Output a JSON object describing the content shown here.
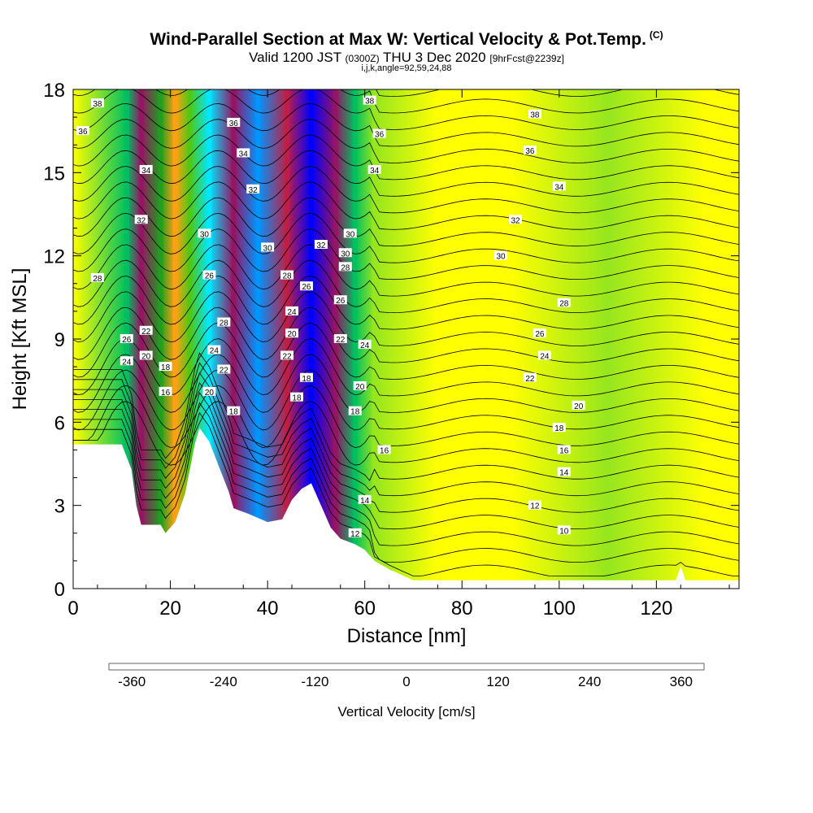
{
  "header": {
    "title": "Wind-Parallel Section at Max W: Vertical Velocity & Pot.Temp.",
    "title_mark": "(C)",
    "subtitle_valid": "Valid 1200 JST",
    "subtitle_z": "(0300Z)",
    "subtitle_date": "THU 3 Dec 2020",
    "subtitle_fcst": "[9hrFcst@2239z]",
    "subtitle_tiny": "i,j,k,angle=92,59,24,88"
  },
  "chart_data": {
    "type": "heatmap",
    "xlabel": "Distance [nm]",
    "ylabel": "Height [Kft MSL]",
    "xlim": [
      0,
      137
    ],
    "ylim": [
      0,
      18
    ],
    "x_ticks": [
      0,
      20,
      40,
      60,
      80,
      100,
      120
    ],
    "y_ticks": [
      0,
      3,
      6,
      9,
      12,
      15,
      18
    ],
    "colorbar": {
      "label": "Vertical Velocity [cm/s]",
      "range": [
        -390,
        390
      ],
      "tick_values": [
        -360,
        -240,
        -120,
        0,
        120,
        240,
        360
      ],
      "colors": [
        "#0000ff",
        "#0050f0",
        "#0096ff",
        "#00e6ff",
        "#00d8a0",
        "#00c060",
        "#1ea01e",
        "#50c814",
        "#96e61e",
        "#ffff00",
        "#ffe600",
        "#ffc800",
        "#ffa014",
        "#ff7814",
        "#ff3c0a",
        "#e60000",
        "#be1e46",
        "#961464",
        "#640a8c"
      ]
    },
    "vertical_velocity_bands": [
      {
        "x": 11,
        "w": -160
      },
      {
        "x": 14,
        "w": 330
      },
      {
        "x": 18,
        "w": -140
      },
      {
        "x": 21,
        "w": 140
      },
      {
        "x": 24,
        "w": -70
      },
      {
        "x": 28,
        "w": -230
      },
      {
        "x": 33,
        "w": 320
      },
      {
        "x": 38,
        "w": -270
      },
      {
        "x": 44,
        "w": 300
      },
      {
        "x": 49,
        "w": -380
      },
      {
        "x": 54,
        "w": 340
      },
      {
        "x": 58,
        "w": -180
      },
      {
        "x": 62,
        "w": -40
      },
      {
        "x": 75,
        "w": 20
      },
      {
        "x": 90,
        "w": 15
      },
      {
        "x": 110,
        "w": -25
      },
      {
        "x": 130,
        "w": 10
      }
    ],
    "terrain_kft": [
      {
        "x": 0,
        "h": 5.2
      },
      {
        "x": 10,
        "h": 5.2
      },
      {
        "x": 12,
        "h": 4.3
      },
      {
        "x": 13,
        "h": 3.0
      },
      {
        "x": 14,
        "h": 2.3
      },
      {
        "x": 18,
        "h": 2.3
      },
      {
        "x": 19,
        "h": 2.0
      },
      {
        "x": 21,
        "h": 2.4
      },
      {
        "x": 23,
        "h": 3.4
      },
      {
        "x": 25,
        "h": 5.2
      },
      {
        "x": 26,
        "h": 5.8
      },
      {
        "x": 28,
        "h": 5.3
      },
      {
        "x": 30,
        "h": 4.4
      },
      {
        "x": 32,
        "h": 3.5
      },
      {
        "x": 33,
        "h": 2.9
      },
      {
        "x": 36,
        "h": 2.7
      },
      {
        "x": 40,
        "h": 2.4
      },
      {
        "x": 43,
        "h": 2.5
      },
      {
        "x": 45,
        "h": 3.2
      },
      {
        "x": 47,
        "h": 3.6
      },
      {
        "x": 49,
        "h": 3.8
      },
      {
        "x": 51,
        "h": 3.0
      },
      {
        "x": 53,
        "h": 2.2
      },
      {
        "x": 55,
        "h": 1.8
      },
      {
        "x": 58,
        "h": 1.6
      },
      {
        "x": 60,
        "h": 1.4
      },
      {
        "x": 62,
        "h": 1.0
      },
      {
        "x": 65,
        "h": 0.7
      },
      {
        "x": 70,
        "h": 0.3
      },
      {
        "x": 124,
        "h": 0.3
      },
      {
        "x": 125,
        "h": 0.8
      },
      {
        "x": 126,
        "h": 0.3
      },
      {
        "x": 137,
        "h": 0.3
      }
    ],
    "theta_contour_labels": [
      {
        "x": 5,
        "y": 17.5,
        "t": "38"
      },
      {
        "x": 2,
        "y": 16.5,
        "t": "36"
      },
      {
        "x": 15,
        "y": 15.1,
        "t": "34"
      },
      {
        "x": 14,
        "y": 13.3,
        "t": "32"
      },
      {
        "x": 5,
        "y": 11.2,
        "t": "28"
      },
      {
        "x": 11,
        "y": 9.0,
        "t": "26"
      },
      {
        "x": 11,
        "y": 8.2,
        "t": "24"
      },
      {
        "x": 15,
        "y": 9.3,
        "t": "22"
      },
      {
        "x": 15,
        "y": 8.4,
        "t": "20"
      },
      {
        "x": 19,
        "y": 8.0,
        "t": "18"
      },
      {
        "x": 19,
        "y": 7.1,
        "t": "16"
      },
      {
        "x": 33,
        "y": 16.8,
        "t": "36"
      },
      {
        "x": 35,
        "y": 15.7,
        "t": "34"
      },
      {
        "x": 37,
        "y": 14.4,
        "t": "32"
      },
      {
        "x": 27,
        "y": 12.8,
        "t": "30"
      },
      {
        "x": 28,
        "y": 11.3,
        "t": "26"
      },
      {
        "x": 31,
        "y": 9.6,
        "t": "28"
      },
      {
        "x": 29,
        "y": 8.6,
        "t": "24"
      },
      {
        "x": 31,
        "y": 7.9,
        "t": "22"
      },
      {
        "x": 28,
        "y": 7.1,
        "t": "20"
      },
      {
        "x": 33,
        "y": 6.4,
        "t": "18"
      },
      {
        "x": 40,
        "y": 12.3,
        "t": "30"
      },
      {
        "x": 44,
        "y": 11.3,
        "t": "28"
      },
      {
        "x": 45,
        "y": 10.0,
        "t": "24"
      },
      {
        "x": 45,
        "y": 9.2,
        "t": "20"
      },
      {
        "x": 44,
        "y": 8.4,
        "t": "22"
      },
      {
        "x": 48,
        "y": 10.9,
        "t": "26"
      },
      {
        "x": 48,
        "y": 7.6,
        "t": "18"
      },
      {
        "x": 46,
        "y": 6.9,
        "t": "18"
      },
      {
        "x": 51,
        "y": 12.4,
        "t": "32"
      },
      {
        "x": 56,
        "y": 12.1,
        "t": "30"
      },
      {
        "x": 56,
        "y": 11.6,
        "t": "28"
      },
      {
        "x": 55,
        "y": 10.4,
        "t": "26"
      },
      {
        "x": 55,
        "y": 9.0,
        "t": "22"
      },
      {
        "x": 60,
        "y": 8.8,
        "t": "24"
      },
      {
        "x": 59,
        "y": 7.3,
        "t": "20"
      },
      {
        "x": 58,
        "y": 6.4,
        "t": "18"
      },
      {
        "x": 61,
        "y": 17.6,
        "t": "38"
      },
      {
        "x": 63,
        "y": 16.4,
        "t": "36"
      },
      {
        "x": 62,
        "y": 15.1,
        "t": "34"
      },
      {
        "x": 57,
        "y": 12.8,
        "t": "30"
      },
      {
        "x": 64,
        "y": 5.0,
        "t": "16"
      },
      {
        "x": 60,
        "y": 3.2,
        "t": "14"
      },
      {
        "x": 58,
        "y": 2.0,
        "t": "12"
      },
      {
        "x": 95,
        "y": 17.1,
        "t": "38"
      },
      {
        "x": 94,
        "y": 15.8,
        "t": "36"
      },
      {
        "x": 100,
        "y": 14.5,
        "t": "34"
      },
      {
        "x": 91,
        "y": 13.3,
        "t": "32"
      },
      {
        "x": 88,
        "y": 12.0,
        "t": "30"
      },
      {
        "x": 101,
        "y": 10.3,
        "t": "28"
      },
      {
        "x": 96,
        "y": 9.2,
        "t": "26"
      },
      {
        "x": 97,
        "y": 8.4,
        "t": "24"
      },
      {
        "x": 94,
        "y": 7.6,
        "t": "22"
      },
      {
        "x": 104,
        "y": 6.6,
        "t": "20"
      },
      {
        "x": 100,
        "y": 5.8,
        "t": "18"
      },
      {
        "x": 101,
        "y": 5.0,
        "t": "16"
      },
      {
        "x": 101,
        "y": 4.2,
        "t": "14"
      },
      {
        "x": 95,
        "y": 3.0,
        "t": "12"
      },
      {
        "x": 101,
        "y": 2.1,
        "t": "10"
      }
    ]
  }
}
